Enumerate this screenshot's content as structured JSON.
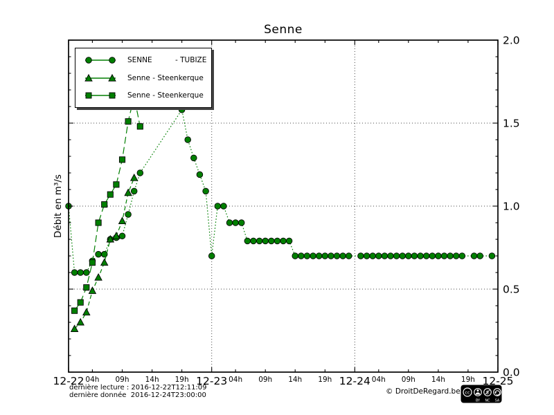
{
  "title": "Senne",
  "ylabel": "Débit en m³/s",
  "legend": {
    "entries": [
      {
        "label": "SENNE          - TUBIZE",
        "marker": "circle"
      },
      {
        "label": "Senne - Steenkerque",
        "marker": "triangle"
      },
      {
        "label": "Senne - Steenkerque",
        "marker": "square"
      }
    ]
  },
  "footer": {
    "line1": "dernière lecture : 2016-12-22T12:11:09",
    "line2": "dernière donnée  2016-12-24T23:00:00",
    "copyright": "© DroitDeRegard.be",
    "cc_letters": [
      "BY",
      "NC",
      "SA"
    ]
  },
  "chart_data": {
    "type": "line",
    "title": "Senne",
    "ylabel": "Débit en m³/s",
    "ylim": [
      0,
      2
    ],
    "x_unit": "hours since 2016-12-22T00:00",
    "x_range_hours": [
      0,
      72
    ],
    "grid": {
      "style": "dotted",
      "y_values": [
        0.5,
        1.0,
        1.5
      ],
      "x_hours": [
        24,
        48
      ]
    },
    "x_axis": {
      "major_ticks": [
        {
          "hour": 0,
          "label": "12-22"
        },
        {
          "hour": 24,
          "label": "12-23"
        },
        {
          "hour": 48,
          "label": "12-24"
        },
        {
          "hour": 72,
          "label": "12-25"
        }
      ],
      "minor_ticks": [
        {
          "hour": 4,
          "label": "04h"
        },
        {
          "hour": 9,
          "label": "09h"
        },
        {
          "hour": 14,
          "label": "14h"
        },
        {
          "hour": 19,
          "label": "19h"
        },
        {
          "hour": 28,
          "label": "04h"
        },
        {
          "hour": 33,
          "label": "09h"
        },
        {
          "hour": 38,
          "label": "14h"
        },
        {
          "hour": 43,
          "label": "19h"
        },
        {
          "hour": 52,
          "label": "04h"
        },
        {
          "hour": 57,
          "label": "09h"
        },
        {
          "hour": 62,
          "label": "14h"
        },
        {
          "hour": 67,
          "label": "19h"
        }
      ]
    },
    "y_axis": {
      "side": "right",
      "ticks": [
        {
          "v": 0.0,
          "label": "0.0"
        },
        {
          "v": 0.5,
          "label": "0.5"
        },
        {
          "v": 1.0,
          "label": "1.0"
        },
        {
          "v": 1.5,
          "label": "1.5"
        },
        {
          "v": 2.0,
          "label": "2.0"
        }
      ],
      "minor_step": 0.1
    },
    "colors": {
      "series": "#007f00",
      "marker_edge": "#000000",
      "grid": "#444444",
      "axis": "#000000"
    },
    "series": [
      {
        "name": "SENNE - TUBIZE",
        "marker": "circle",
        "linestyle": "dotted",
        "points": [
          [
            0,
            1.0
          ],
          [
            1,
            0.6
          ],
          [
            2,
            0.6
          ],
          [
            3,
            0.6
          ],
          [
            4,
            0.67
          ],
          [
            5,
            0.71
          ],
          [
            6,
            0.71
          ],
          [
            7,
            0.8
          ],
          [
            8,
            0.81
          ],
          [
            9,
            0.82
          ],
          [
            10,
            0.95
          ],
          [
            11,
            1.09
          ],
          [
            12,
            1.2
          ],
          [
            19,
            1.58
          ],
          [
            20,
            1.4
          ],
          [
            21,
            1.29
          ],
          [
            22,
            1.19
          ],
          [
            23,
            1.09
          ],
          [
            24,
            0.7
          ],
          [
            25,
            1.0
          ],
          [
            26,
            1.0
          ],
          [
            27,
            0.9
          ],
          [
            28,
            0.9
          ],
          [
            29,
            0.9
          ],
          [
            30,
            0.79
          ],
          [
            31,
            0.79
          ],
          [
            32,
            0.79
          ],
          [
            33,
            0.79
          ],
          [
            34,
            0.79
          ],
          [
            35,
            0.79
          ],
          [
            36,
            0.79
          ],
          [
            37,
            0.79
          ],
          [
            38,
            0.7
          ],
          [
            39,
            0.7
          ],
          [
            40,
            0.7
          ],
          [
            41,
            0.7
          ],
          [
            42,
            0.7
          ],
          [
            43,
            0.7
          ],
          [
            44,
            0.7
          ],
          [
            45,
            0.7
          ],
          [
            46,
            0.7
          ],
          [
            47,
            0.7
          ],
          [
            49,
            0.7
          ],
          [
            50,
            0.7
          ],
          [
            51,
            0.7
          ],
          [
            52,
            0.7
          ],
          [
            53,
            0.7
          ],
          [
            54,
            0.7
          ],
          [
            55,
            0.7
          ],
          [
            56,
            0.7
          ],
          [
            57,
            0.7
          ],
          [
            58,
            0.7
          ],
          [
            59,
            0.7
          ],
          [
            60,
            0.7
          ],
          [
            61,
            0.7
          ],
          [
            62,
            0.7
          ],
          [
            63,
            0.7
          ],
          [
            64,
            0.7
          ],
          [
            65,
            0.7
          ],
          [
            66,
            0.7
          ],
          [
            68,
            0.7
          ],
          [
            69,
            0.7
          ],
          [
            71,
            0.7
          ]
        ]
      },
      {
        "name": "Senne - Steenkerque",
        "marker": "triangle",
        "linestyle": "dashed",
        "points": [
          [
            1,
            0.26
          ],
          [
            2,
            0.3
          ],
          [
            3,
            0.36
          ],
          [
            4,
            0.49
          ],
          [
            5,
            0.57
          ],
          [
            6,
            0.66
          ],
          [
            7,
            0.8
          ],
          [
            8,
            0.82
          ],
          [
            9,
            0.91
          ],
          [
            10,
            1.08
          ],
          [
            11,
            1.17
          ]
        ]
      },
      {
        "name": "Senne - Steenkerque",
        "marker": "square",
        "linestyle": "longdash",
        "points": [
          [
            1,
            0.37
          ],
          [
            2,
            0.42
          ],
          [
            3,
            0.51
          ],
          [
            4,
            0.66
          ],
          [
            5,
            0.9
          ],
          [
            6,
            1.01
          ],
          [
            7,
            1.07
          ],
          [
            8,
            1.13
          ],
          [
            9,
            1.28
          ],
          [
            10,
            1.51
          ],
          [
            11,
            1.66
          ],
          [
            12,
            1.48
          ]
        ]
      }
    ]
  }
}
